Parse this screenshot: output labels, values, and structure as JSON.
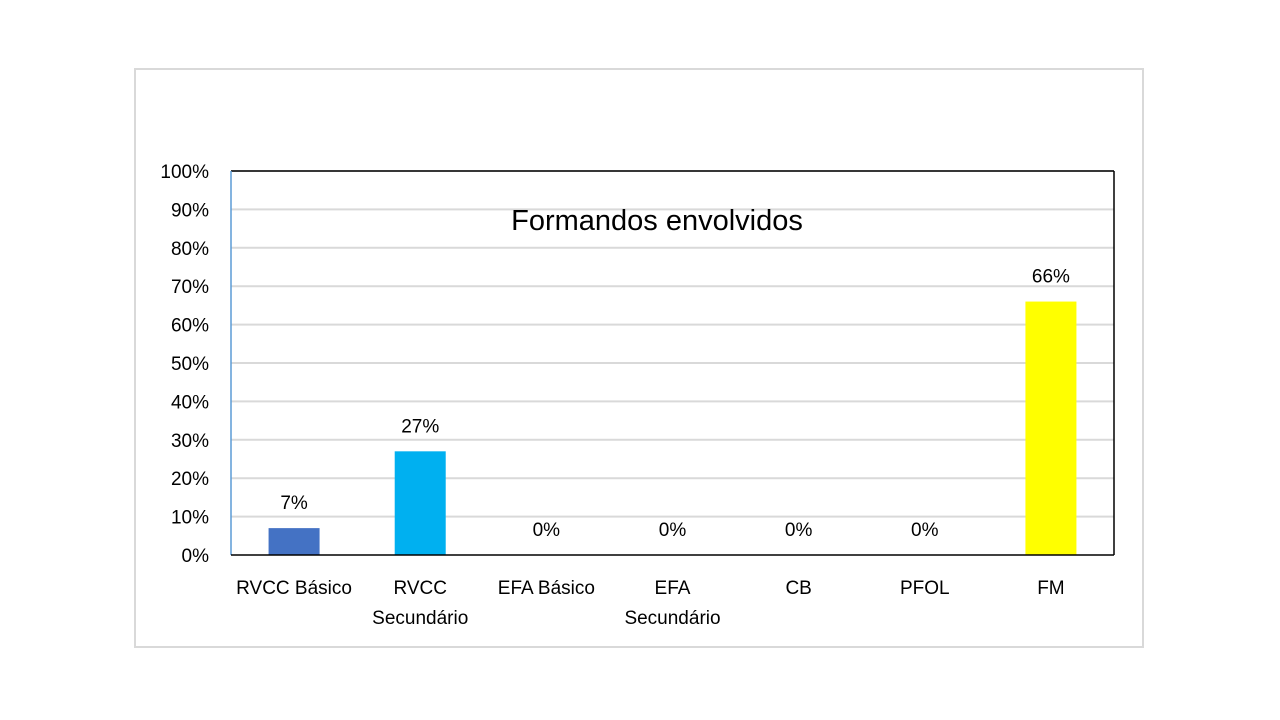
{
  "chart_data": {
    "type": "bar",
    "title": "Formandos envolvidos",
    "categories": [
      [
        "RVCC Básico"
      ],
      [
        "RVCC",
        "Secundário"
      ],
      [
        "EFA Básico"
      ],
      [
        "EFA",
        "Secundário"
      ],
      [
        "CB"
      ],
      [
        "PFOL"
      ],
      [
        "FM"
      ]
    ],
    "values": [
      7,
      27,
      0,
      0,
      0,
      0,
      66
    ],
    "data_labels": [
      "7%",
      "27%",
      "0%",
      "0%",
      "0%",
      "0%",
      "66%"
    ],
    "bar_colors": [
      "#4472C4",
      "#00B0F0",
      "#4472C4",
      "#4472C4",
      "#4472C4",
      "#4472C4",
      "#FFFF00"
    ],
    "ylim": [
      0,
      100
    ],
    "y_ticks": [
      0,
      10,
      20,
      30,
      40,
      50,
      60,
      70,
      80,
      90,
      100
    ],
    "y_tick_labels": [
      "0%",
      "10%",
      "20%",
      "30%",
      "40%",
      "50%",
      "60%",
      "70%",
      "80%",
      "90%",
      "100%"
    ],
    "xlabel": "",
    "ylabel": "",
    "grid": true,
    "legend": "none",
    "gridline_color": "#d9d9d9",
    "axis_color": "#000000",
    "left_axis_color": "#5b9bd5"
  }
}
